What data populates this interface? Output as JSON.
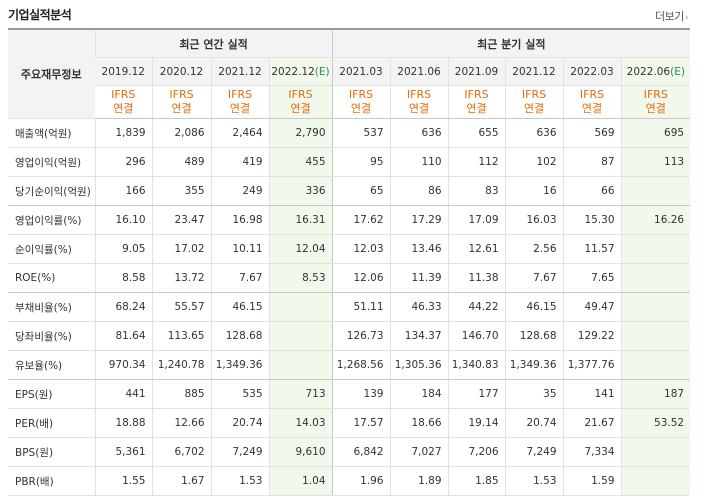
{
  "header": {
    "title": "기업실적분석",
    "more_label": "더보기"
  },
  "table": {
    "corner_label": "주요재무정보",
    "annual_group": "최근 연간 실적",
    "quarter_group": "최근 분기 실적",
    "annual_periods": [
      "2019.12",
      "2020.12",
      "2021.12",
      "2022.12"
    ],
    "annual_est_suffix": "(E)",
    "quarter_periods": [
      "2021.03",
      "2021.06",
      "2021.09",
      "2021.12",
      "2022.03",
      "2022.06"
    ],
    "quarter_est_suffix": "(E)",
    "basis_line1": "IFRS",
    "basis_line2": "연결",
    "rows": [
      {
        "label": "매출액(억원)",
        "values": [
          "1,839",
          "2,086",
          "2,464",
          "2,790",
          "537",
          "636",
          "655",
          "636",
          "569",
          "695"
        ]
      },
      {
        "label": "영업이익(억원)",
        "values": [
          "296",
          "489",
          "419",
          "455",
          "95",
          "110",
          "112",
          "102",
          "87",
          "113"
        ]
      },
      {
        "label": "당기순이익(억원)",
        "values": [
          "166",
          "355",
          "249",
          "336",
          "65",
          "86",
          "83",
          "16",
          "66",
          ""
        ]
      },
      {
        "label": "영업이익률(%)",
        "values": [
          "16.10",
          "23.47",
          "16.98",
          "16.31",
          "17.62",
          "17.29",
          "17.09",
          "16.03",
          "15.30",
          "16.26"
        ]
      },
      {
        "label": "순이익률(%)",
        "values": [
          "9.05",
          "17.02",
          "10.11",
          "12.04",
          "12.03",
          "13.46",
          "12.61",
          "2.56",
          "11.57",
          ""
        ]
      },
      {
        "label": "ROE(%)",
        "values": [
          "8.58",
          "13.72",
          "7.67",
          "8.53",
          "12.06",
          "11.39",
          "11.38",
          "7.67",
          "7.65",
          ""
        ]
      },
      {
        "label": "부채비율(%)",
        "values": [
          "68.24",
          "55.57",
          "46.15",
          "",
          "51.11",
          "46.33",
          "44.22",
          "46.15",
          "49.47",
          ""
        ]
      },
      {
        "label": "당좌비율(%)",
        "values": [
          "81.64",
          "113.65",
          "128.68",
          "",
          "126.73",
          "134.37",
          "146.70",
          "128.68",
          "129.22",
          ""
        ]
      },
      {
        "label": "유보율(%)",
        "values": [
          "970.34",
          "1,240.78",
          "1,349.36",
          "",
          "1,268.56",
          "1,305.36",
          "1,340.83",
          "1,349.36",
          "1,377.76",
          ""
        ]
      },
      {
        "label": "EPS(원)",
        "values": [
          "441",
          "885",
          "535",
          "713",
          "139",
          "184",
          "177",
          "35",
          "141",
          "187"
        ]
      },
      {
        "label": "PER(배)",
        "values": [
          "18.88",
          "12.66",
          "20.74",
          "14.03",
          "17.57",
          "18.66",
          "19.14",
          "20.74",
          "21.67",
          "53.52"
        ]
      },
      {
        "label": "BPS(원)",
        "values": [
          "5,361",
          "6,702",
          "7,249",
          "9,610",
          "6,842",
          "7,027",
          "7,206",
          "7,249",
          "7,334",
          ""
        ]
      },
      {
        "label": "PBR(배)",
        "values": [
          "1.55",
          "1.67",
          "1.53",
          "1.04",
          "1.96",
          "1.89",
          "1.85",
          "1.53",
          "1.59",
          ""
        ]
      }
    ]
  }
}
